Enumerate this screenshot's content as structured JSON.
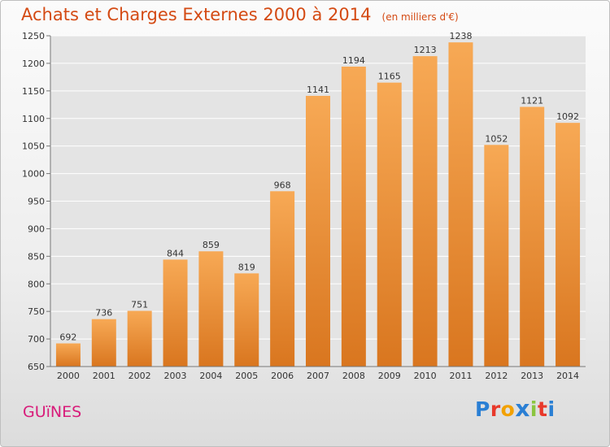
{
  "chart_data": {
    "type": "bar",
    "title": "Achats et Charges Externes 2000 à 2014",
    "subtitle": "(en milliers d'€)",
    "categories": [
      "2000",
      "2001",
      "2002",
      "2003",
      "2004",
      "2005",
      "2006",
      "2007",
      "2008",
      "2009",
      "2010",
      "2011",
      "2012",
      "2013",
      "2014"
    ],
    "values": [
      692,
      736,
      751,
      844,
      859,
      819,
      968,
      1141,
      1194,
      1165,
      1213,
      1238,
      1052,
      1121,
      1092
    ],
    "ylim": [
      650,
      1250
    ],
    "yticks": [
      650,
      700,
      750,
      800,
      850,
      900,
      950,
      1000,
      1050,
      1100,
      1150,
      1200,
      1250
    ],
    "xlabel": "",
    "ylabel": "",
    "grid": true,
    "bar_color": "#f4a04a",
    "bar_color_dark": "#d9761f",
    "title_color": "#d44a13"
  },
  "footer": {
    "commune": "GUïNES",
    "commune_color": "#d81b7a",
    "logo_text": "Proxiti"
  }
}
